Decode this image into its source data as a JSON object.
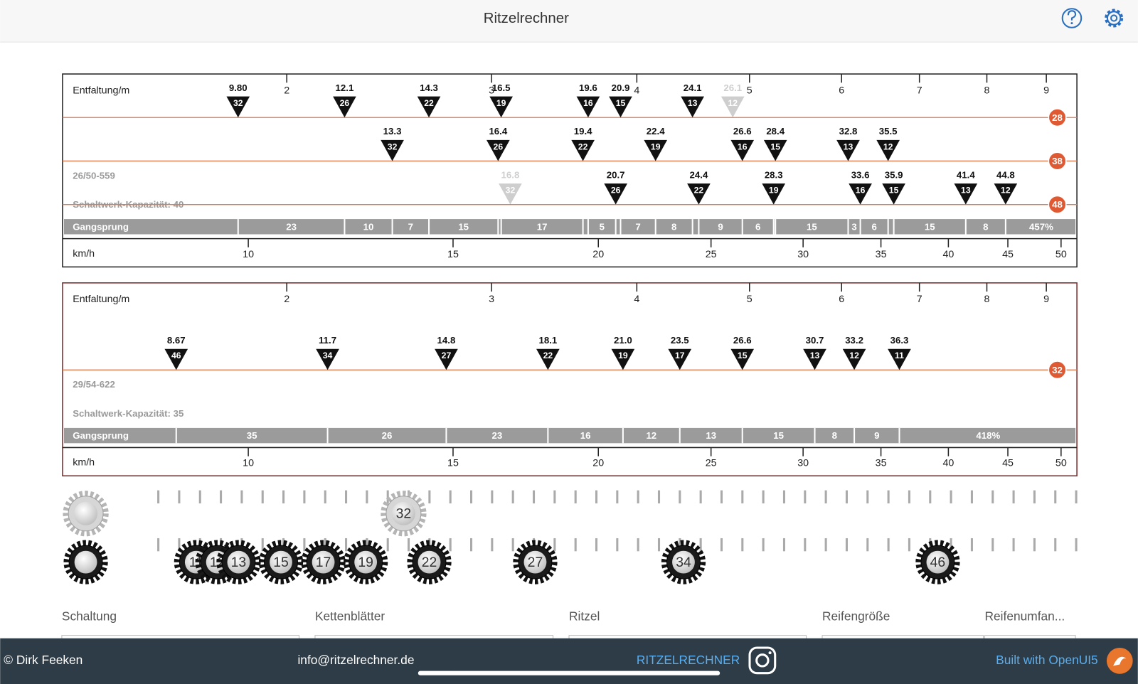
{
  "header": {
    "title": "Ritzelrechner"
  },
  "panels": [
    {
      "entfaltung_label": "Entfaltung/m",
      "entfaltung_ticks": [
        2,
        3,
        4,
        5,
        6,
        7,
        8,
        9
      ],
      "rows": [
        {
          "chainring": 28,
          "markers": [
            {
              "speed": {
                "value": 9.8,
                "label": "9.80"
              },
              "cog": 32
            },
            {
              "speed": 12.1,
              "cog": 26
            },
            {
              "speed": 14.3,
              "cog": 22
            },
            {
              "speed": 16.5,
              "cog": 19
            },
            {
              "speed": 19.6,
              "cog": 16
            },
            {
              "speed": 20.9,
              "cog": 15
            },
            {
              "speed": 24.1,
              "cog": 13
            },
            {
              "speed": 26.1,
              "cog": 12,
              "ghost": true
            }
          ]
        },
        {
          "chainring": 38,
          "markers": [
            {
              "speed": 13.3,
              "cog": 32
            },
            {
              "speed": 16.4,
              "cog": 26
            },
            {
              "speed": 19.4,
              "cog": 22
            },
            {
              "speed": 22.4,
              "cog": 19
            },
            {
              "speed": 26.6,
              "cog": 16
            },
            {
              "speed": 28.4,
              "cog": 15
            },
            {
              "speed": 32.8,
              "cog": 13
            },
            {
              "speed": 35.5,
              "cog": 12
            }
          ]
        },
        {
          "chainring": 48,
          "markers": [
            {
              "speed": 16.8,
              "cog": 32,
              "ghost": true
            },
            {
              "speed": 20.7,
              "cog": 26
            },
            {
              "speed": 24.4,
              "cog": 22
            },
            {
              "speed": 28.3,
              "cog": 19
            },
            {
              "speed": 33.6,
              "cog": 16
            },
            {
              "speed": 35.9,
              "cog": 15
            },
            {
              "speed": 41.4,
              "cog": 13
            },
            {
              "speed": 44.8,
              "cog": 12
            }
          ]
        }
      ],
      "info": "26/50-559",
      "capacity": "Schaltwerk-Kapazität: 40",
      "gangsprung_label": "Gangsprung",
      "gangsprung": [
        23,
        10,
        7,
        15,
        null,
        17,
        null,
        5,
        null,
        7,
        8,
        null,
        9,
        6,
        null,
        15,
        3,
        6,
        null,
        15,
        8
      ],
      "gangsprung_total": "457%",
      "speed_label": "km/h",
      "speed_ticks": [
        10,
        15,
        20,
        25,
        30,
        35,
        40,
        45,
        50
      ]
    },
    {
      "entfaltung_label": "Entfaltung/m",
      "entfaltung_ticks": [
        2,
        3,
        4,
        5,
        6,
        7,
        8,
        9
      ],
      "rows": [
        {
          "chainring": 32,
          "markers": [
            {
              "speed": 8.67,
              "cog": 46
            },
            {
              "speed": 11.7,
              "cog": 34
            },
            {
              "speed": 14.8,
              "cog": 27
            },
            {
              "speed": 18.1,
              "cog": 22
            },
            {
              "speed": {
                "value": 21,
                "label": "21.0"
              },
              "cog": 19
            },
            {
              "speed": 23.5,
              "cog": 17
            },
            {
              "speed": 26.6,
              "cog": 15
            },
            {
              "speed": 30.7,
              "cog": 13
            },
            {
              "speed": 33.2,
              "cog": 12
            },
            {
              "speed": 36.3,
              "cog": 11
            }
          ]
        }
      ],
      "info": "29/54-622",
      "capacity": "Schaltwerk-Kapazität: 35",
      "gangsprung_label": "Gangsprung",
      "gangsprung": [
        35,
        26,
        23,
        16,
        12,
        13,
        15,
        8,
        9
      ],
      "gangsprung_total": "418%",
      "speed_label": "km/h",
      "speed_ticks": [
        10,
        15,
        20,
        25,
        30,
        35,
        40,
        45,
        50
      ]
    }
  ],
  "drivetrain": {
    "chainrings": [
      32
    ],
    "cogs": [
      11,
      12,
      13,
      15,
      17,
      19,
      22,
      27,
      34,
      46
    ]
  },
  "form_labels": [
    "Schaltung",
    "Kettenblätter",
    "Ritzel",
    "Reifengröße",
    "Reifenumfan..."
  ],
  "footer": {
    "copyright": "© Dirk Feeken",
    "email": "info@ritzelrechner.de",
    "brand": "RITZELRECHNER",
    "built_with": "Built with OpenUI5"
  }
}
